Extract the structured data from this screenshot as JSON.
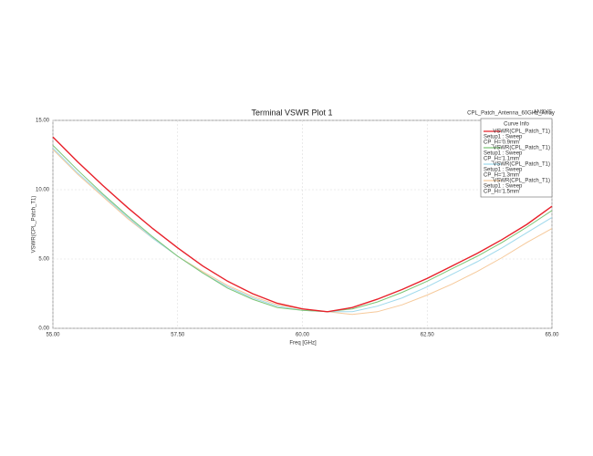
{
  "chart_data": {
    "type": "line",
    "title": "Terminal VSWR Plot 1",
    "design": "CPL_Patch_Antenna_60GHz_Array",
    "brand": "ANSYS",
    "legend_title": "Curve Info",
    "xlabel": "Freq [GHz]",
    "ylabel": "VSWR(CPL_Patch_T1)",
    "x": [
      55,
      55.5,
      56,
      56.5,
      57,
      57.5,
      58,
      58.5,
      59,
      59.5,
      60,
      60.5,
      61,
      61.5,
      62,
      62.5,
      63,
      63.5,
      64,
      64.5,
      65
    ],
    "series": [
      {
        "name": "VSWR(CPL_Patch_T1)",
        "setup": "Setup1 : Sweep",
        "variant": "CP_H='0.9mm'",
        "color": "#e8202a",
        "values": [
          13.8,
          12.0,
          10.3,
          8.7,
          7.2,
          5.8,
          4.5,
          3.4,
          2.5,
          1.8,
          1.4,
          1.2,
          1.5,
          2.1,
          2.8,
          3.6,
          4.5,
          5.4,
          6.4,
          7.5,
          8.8
        ]
      },
      {
        "name": "VSWR(CPL_Patch_T1)",
        "setup": "Setup1 : Sweep",
        "variant": "CP_H='1.1mm'",
        "color": "#7cc576",
        "values": [
          13.2,
          11.4,
          9.7,
          8.1,
          6.6,
          5.2,
          4.0,
          2.9,
          2.1,
          1.5,
          1.3,
          1.2,
          1.4,
          1.9,
          2.6,
          3.4,
          4.3,
          5.2,
          6.2,
          7.3,
          8.5
        ]
      },
      {
        "name": "VSWR(CPL_Patch_T1)",
        "setup": "Setup1 : Sweep",
        "variant": "CP_H='1.3mm'",
        "color": "#9fd9ec",
        "values": [
          13.0,
          11.2,
          9.6,
          8.0,
          6.5,
          5.2,
          4.0,
          3.0,
          2.2,
          1.6,
          1.3,
          1.2,
          1.2,
          1.6,
          2.2,
          3.0,
          3.9,
          4.8,
          5.8,
          6.9,
          8.0
        ]
      },
      {
        "name": "VSWR(CPL_Patch_T1)",
        "setup": "Setup1 : Sweep",
        "variant": "CP_H='1.5mm'",
        "color": "#f6c99a",
        "values": [
          12.9,
          11.1,
          9.5,
          7.9,
          6.5,
          5.2,
          4.1,
          3.1,
          2.3,
          1.7,
          1.4,
          1.2,
          1.0,
          1.2,
          1.7,
          2.4,
          3.2,
          4.1,
          5.1,
          6.2,
          7.2
        ]
      }
    ],
    "xlim": [
      55,
      65
    ],
    "xticks": [
      {
        "value": 55,
        "label": "55.00"
      },
      {
        "value": 57.5,
        "label": "57.50"
      },
      {
        "value": 60,
        "label": "60.00"
      },
      {
        "value": 62.5,
        "label": "62.50"
      },
      {
        "value": 65,
        "label": "65.00"
      }
    ],
    "ylim": [
      0,
      15
    ],
    "yticks": [
      {
        "value": 0,
        "label": "0.00"
      },
      {
        "value": 5,
        "label": "5.00"
      },
      {
        "value": 10,
        "label": "10.00"
      },
      {
        "value": 15,
        "label": "15.00"
      }
    ],
    "grid": true
  }
}
